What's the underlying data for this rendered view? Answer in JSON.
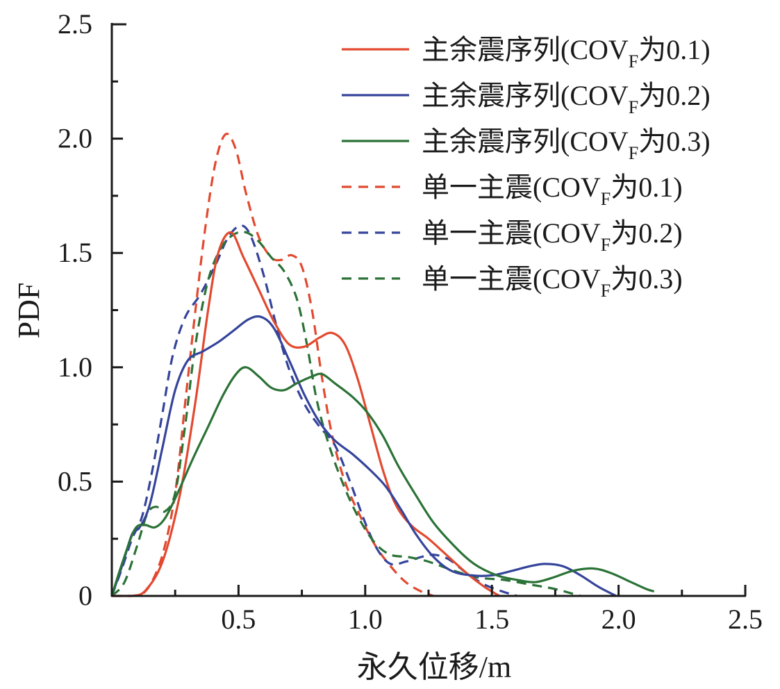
{
  "chart_data": {
    "type": "line",
    "title": "",
    "xlabel": "永久位移/m",
    "ylabel": "PDF",
    "xlim": [
      0,
      2.5
    ],
    "ylim": [
      0,
      2.5
    ],
    "x_ticks": [
      "0.5",
      "1.0",
      "1.5",
      "2.0",
      "2.5"
    ],
    "x_tick_values": [
      0.5,
      1.0,
      1.5,
      2.0,
      2.5
    ],
    "x_minor_tick_values": [
      0.25,
      0.75,
      1.25,
      1.75,
      2.25
    ],
    "y_ticks": [
      "0",
      "0.5",
      "1.0",
      "1.5",
      "2.0",
      "2.5"
    ],
    "y_tick_values": [
      0,
      0.5,
      1.0,
      1.5,
      2.0,
      2.5
    ],
    "y_minor_tick_values": [
      0.25,
      0.75,
      1.25,
      1.75,
      2.25
    ],
    "grid": false,
    "legend_position": "top-right",
    "series": [
      {
        "name": "主余震序列(COVF为0.1)",
        "label_main": "主余震序列(COV",
        "label_sub": "F",
        "label_tail": "为0.1)",
        "color": "#e2492f",
        "dashed": false,
        "points": [
          [
            0.0,
            0.0
          ],
          [
            0.08,
            0.0
          ],
          [
            0.13,
            0.02
          ],
          [
            0.2,
            0.15
          ],
          [
            0.27,
            0.45
          ],
          [
            0.33,
            0.85
          ],
          [
            0.38,
            1.25
          ],
          [
            0.42,
            1.5
          ],
          [
            0.47,
            1.59
          ],
          [
            0.52,
            1.48
          ],
          [
            0.58,
            1.34
          ],
          [
            0.64,
            1.2
          ],
          [
            0.7,
            1.1
          ],
          [
            0.76,
            1.09
          ],
          [
            0.82,
            1.13
          ],
          [
            0.87,
            1.15
          ],
          [
            0.92,
            1.1
          ],
          [
            0.97,
            0.95
          ],
          [
            1.02,
            0.75
          ],
          [
            1.07,
            0.55
          ],
          [
            1.12,
            0.4
          ],
          [
            1.18,
            0.31
          ],
          [
            1.25,
            0.25
          ],
          [
            1.32,
            0.18
          ],
          [
            1.4,
            0.1
          ],
          [
            1.47,
            0.04
          ],
          [
            1.53,
            0.0
          ]
        ]
      },
      {
        "name": "主余震序列(COVF为0.2)",
        "label_main": "主余震序列(COV",
        "label_sub": "F",
        "label_tail": "为0.2)",
        "color": "#35449a",
        "dashed": false,
        "points": [
          [
            0.0,
            0.0
          ],
          [
            0.04,
            0.13
          ],
          [
            0.08,
            0.27
          ],
          [
            0.11,
            0.3
          ],
          [
            0.15,
            0.4
          ],
          [
            0.2,
            0.65
          ],
          [
            0.25,
            0.9
          ],
          [
            0.3,
            1.03
          ],
          [
            0.36,
            1.07
          ],
          [
            0.42,
            1.11
          ],
          [
            0.48,
            1.16
          ],
          [
            0.54,
            1.21
          ],
          [
            0.59,
            1.22
          ],
          [
            0.64,
            1.17
          ],
          [
            0.7,
            1.03
          ],
          [
            0.76,
            0.88
          ],
          [
            0.82,
            0.76
          ],
          [
            0.88,
            0.68
          ],
          [
            0.95,
            0.62
          ],
          [
            1.02,
            0.55
          ],
          [
            1.08,
            0.48
          ],
          [
            1.14,
            0.38
          ],
          [
            1.2,
            0.27
          ],
          [
            1.27,
            0.17
          ],
          [
            1.34,
            0.11
          ],
          [
            1.42,
            0.09
          ],
          [
            1.5,
            0.09
          ],
          [
            1.58,
            0.11
          ],
          [
            1.65,
            0.13
          ],
          [
            1.71,
            0.14
          ],
          [
            1.78,
            0.13
          ],
          [
            1.85,
            0.09
          ],
          [
            1.92,
            0.04
          ],
          [
            1.99,
            0.0
          ]
        ]
      },
      {
        "name": "主余震序列(COVF为0.3)",
        "label_main": "主余震序列(COV",
        "label_sub": "F",
        "label_tail": "为0.3)",
        "color": "#2b7236",
        "dashed": false,
        "points": [
          [
            0.0,
            0.0
          ],
          [
            0.04,
            0.14
          ],
          [
            0.09,
            0.29
          ],
          [
            0.13,
            0.31
          ],
          [
            0.17,
            0.3
          ],
          [
            0.21,
            0.34
          ],
          [
            0.26,
            0.45
          ],
          [
            0.32,
            0.6
          ],
          [
            0.38,
            0.74
          ],
          [
            0.44,
            0.88
          ],
          [
            0.49,
            0.97
          ],
          [
            0.53,
            1.0
          ],
          [
            0.58,
            0.96
          ],
          [
            0.63,
            0.91
          ],
          [
            0.68,
            0.9
          ],
          [
            0.73,
            0.93
          ],
          [
            0.79,
            0.96
          ],
          [
            0.83,
            0.97
          ],
          [
            0.88,
            0.93
          ],
          [
            0.95,
            0.87
          ],
          [
            1.01,
            0.8
          ],
          [
            1.07,
            0.7
          ],
          [
            1.13,
            0.57
          ],
          [
            1.2,
            0.44
          ],
          [
            1.27,
            0.32
          ],
          [
            1.35,
            0.22
          ],
          [
            1.43,
            0.14
          ],
          [
            1.52,
            0.09
          ],
          [
            1.6,
            0.07
          ],
          [
            1.67,
            0.06
          ],
          [
            1.74,
            0.08
          ],
          [
            1.82,
            0.11
          ],
          [
            1.9,
            0.12
          ],
          [
            1.97,
            0.1
          ],
          [
            2.05,
            0.06
          ],
          [
            2.11,
            0.03
          ],
          [
            2.14,
            0.02
          ]
        ]
      },
      {
        "name": "单一主震(COVF为0.1)",
        "label_main": "单一主震(COV",
        "label_sub": "F",
        "label_tail": "为0.1)",
        "color": "#e2492f",
        "dashed": true,
        "points": [
          [
            0.0,
            0.0
          ],
          [
            0.08,
            0.0
          ],
          [
            0.14,
            0.03
          ],
          [
            0.2,
            0.18
          ],
          [
            0.25,
            0.45
          ],
          [
            0.29,
            0.85
          ],
          [
            0.33,
            1.25
          ],
          [
            0.37,
            1.62
          ],
          [
            0.41,
            1.9
          ],
          [
            0.45,
            2.02
          ],
          [
            0.49,
            1.95
          ],
          [
            0.53,
            1.76
          ],
          [
            0.58,
            1.57
          ],
          [
            0.63,
            1.48
          ],
          [
            0.67,
            1.47
          ],
          [
            0.71,
            1.49
          ],
          [
            0.75,
            1.44
          ],
          [
            0.79,
            1.25
          ],
          [
            0.83,
            0.95
          ],
          [
            0.87,
            0.7
          ],
          [
            0.92,
            0.5
          ],
          [
            0.98,
            0.35
          ],
          [
            1.04,
            0.22
          ],
          [
            1.1,
            0.13
          ],
          [
            1.16,
            0.06
          ],
          [
            1.22,
            0.02
          ],
          [
            1.27,
            0.0
          ]
        ]
      },
      {
        "name": "单一主震(COVF为0.2)",
        "label_main": "单一主震(COV",
        "label_sub": "F",
        "label_tail": "为0.2)",
        "color": "#35449a",
        "dashed": true,
        "points": [
          [
            0.0,
            0.0
          ],
          [
            0.04,
            0.12
          ],
          [
            0.08,
            0.25
          ],
          [
            0.12,
            0.35
          ],
          [
            0.16,
            0.55
          ],
          [
            0.2,
            0.8
          ],
          [
            0.24,
            1.05
          ],
          [
            0.29,
            1.22
          ],
          [
            0.35,
            1.32
          ],
          [
            0.41,
            1.45
          ],
          [
            0.46,
            1.57
          ],
          [
            0.51,
            1.62
          ],
          [
            0.55,
            1.57
          ],
          [
            0.6,
            1.4
          ],
          [
            0.65,
            1.18
          ],
          [
            0.7,
            0.99
          ],
          [
            0.76,
            0.84
          ],
          [
            0.82,
            0.74
          ],
          [
            0.88,
            0.66
          ],
          [
            0.94,
            0.5
          ],
          [
            1.0,
            0.32
          ],
          [
            1.05,
            0.2
          ],
          [
            1.1,
            0.14
          ],
          [
            1.16,
            0.15
          ],
          [
            1.22,
            0.17
          ],
          [
            1.27,
            0.18
          ],
          [
            1.33,
            0.16
          ],
          [
            1.4,
            0.1
          ],
          [
            1.47,
            0.05
          ],
          [
            1.54,
            0.02
          ],
          [
            1.6,
            0.0
          ]
        ]
      },
      {
        "name": "单一主震(COVF为0.3)",
        "label_main": "单一主震(COV",
        "label_sub": "F",
        "label_tail": "为0.3)",
        "color": "#2b7236",
        "dashed": true,
        "points": [
          [
            0.0,
            0.0
          ],
          [
            0.05,
            0.06
          ],
          [
            0.1,
            0.22
          ],
          [
            0.14,
            0.36
          ],
          [
            0.175,
            0.39
          ],
          [
            0.21,
            0.37
          ],
          [
            0.25,
            0.45
          ],
          [
            0.29,
            0.75
          ],
          [
            0.33,
            1.1
          ],
          [
            0.38,
            1.38
          ],
          [
            0.43,
            1.52
          ],
          [
            0.48,
            1.58
          ],
          [
            0.53,
            1.59
          ],
          [
            0.58,
            1.55
          ],
          [
            0.63,
            1.48
          ],
          [
            0.68,
            1.42
          ],
          [
            0.73,
            1.3
          ],
          [
            0.77,
            1.1
          ],
          [
            0.81,
            0.85
          ],
          [
            0.86,
            0.65
          ],
          [
            0.92,
            0.47
          ],
          [
            0.98,
            0.33
          ],
          [
            1.04,
            0.23
          ],
          [
            1.1,
            0.18
          ],
          [
            1.17,
            0.17
          ],
          [
            1.25,
            0.15
          ],
          [
            1.35,
            0.11
          ],
          [
            1.45,
            0.08
          ],
          [
            1.55,
            0.07
          ],
          [
            1.65,
            0.05
          ],
          [
            1.75,
            0.03
          ],
          [
            1.85,
            0.0
          ]
        ]
      }
    ]
  }
}
